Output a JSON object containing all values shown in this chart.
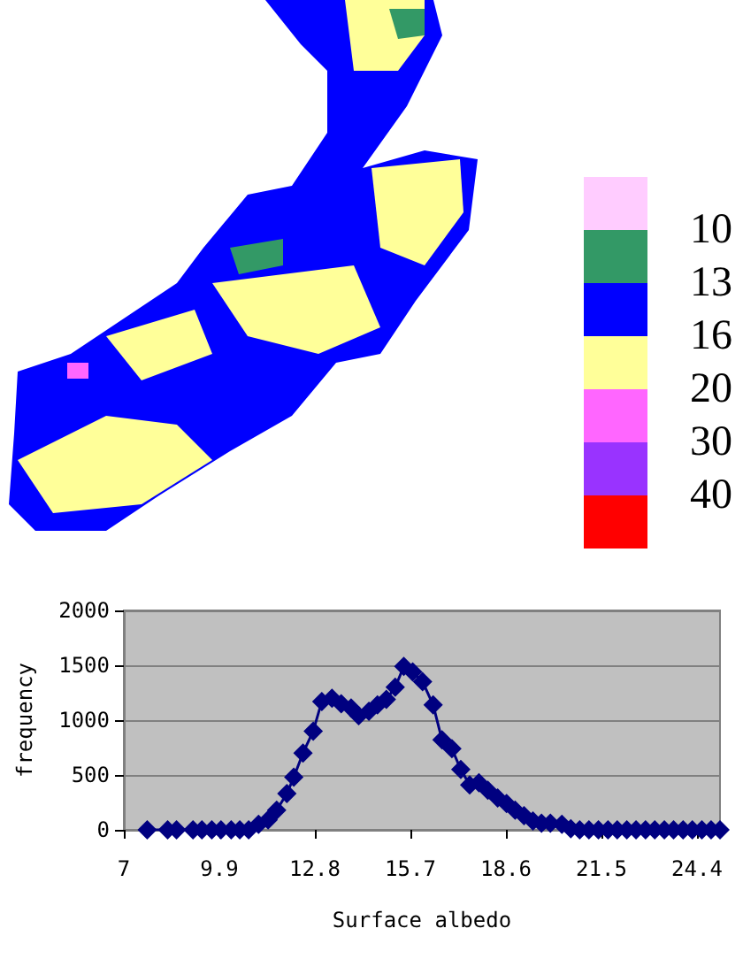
{
  "chart_data": [
    {
      "type": "other",
      "colors": [
        "#ffccff",
        "#339966",
        "#0000ff",
        "#ffff99",
        "#ff66ff",
        "#9933ff",
        "#ff0000"
      ],
      "annotations": [
        "10",
        "13",
        "16",
        "20",
        "30",
        "40"
      ]
    },
    {
      "type": "line",
      "xlabel": "Surface albedo",
      "ylabel": "frequency",
      "x": [
        7.71,
        8.33,
        8.6,
        9.1,
        9.37,
        9.67,
        9.95,
        10.26,
        10.52,
        10.79,
        11.09,
        11.38,
        11.64,
        11.95,
        12.16,
        12.44,
        12.75,
        13.01,
        13.32,
        13.6,
        13.9,
        14.13,
        14.44,
        14.7,
        14.97,
        15.24,
        15.5,
        15.77,
        16.07,
        16.39,
        16.66,
        16.96,
        17.23,
        17.5,
        17.78,
        18.05,
        18.35,
        18.62,
        18.88,
        19.15,
        19.42,
        19.68,
        19.95,
        20.3,
        20.57,
        20.84,
        21.12,
        21.41,
        21.7,
        21.98,
        22.27,
        22.55,
        22.84,
        23.12,
        23.41,
        23.69,
        23.98,
        24.26,
        24.55,
        24.83,
        25.1
      ],
      "series": [
        {
          "color": "#000080",
          "values": [
            0,
            0,
            0,
            0,
            0,
            0,
            0,
            0,
            0,
            0,
            50,
            90,
            180,
            330,
            480,
            700,
            900,
            1170,
            1200,
            1150,
            1110,
            1040,
            1080,
            1140,
            1190,
            1300,
            1490,
            1440,
            1350,
            1140,
            820,
            740,
            550,
            410,
            430,
            360,
            290,
            240,
            180,
            130,
            80,
            60,
            60,
            50,
            10,
            0,
            0,
            0,
            0,
            0,
            0,
            0,
            0,
            0,
            0,
            0,
            0,
            0,
            0,
            0,
            0
          ]
        }
      ],
      "xlim": [
        7,
        25.1
      ],
      "xticks": [
        7,
        9.9,
        12.8,
        15.7,
        18.6,
        21.5,
        24.4
      ],
      "ylim": [
        0,
        2000
      ],
      "yticks": [
        0,
        500,
        1000,
        1500,
        2000
      ],
      "grid": "y",
      "marker": "diamond"
    }
  ]
}
